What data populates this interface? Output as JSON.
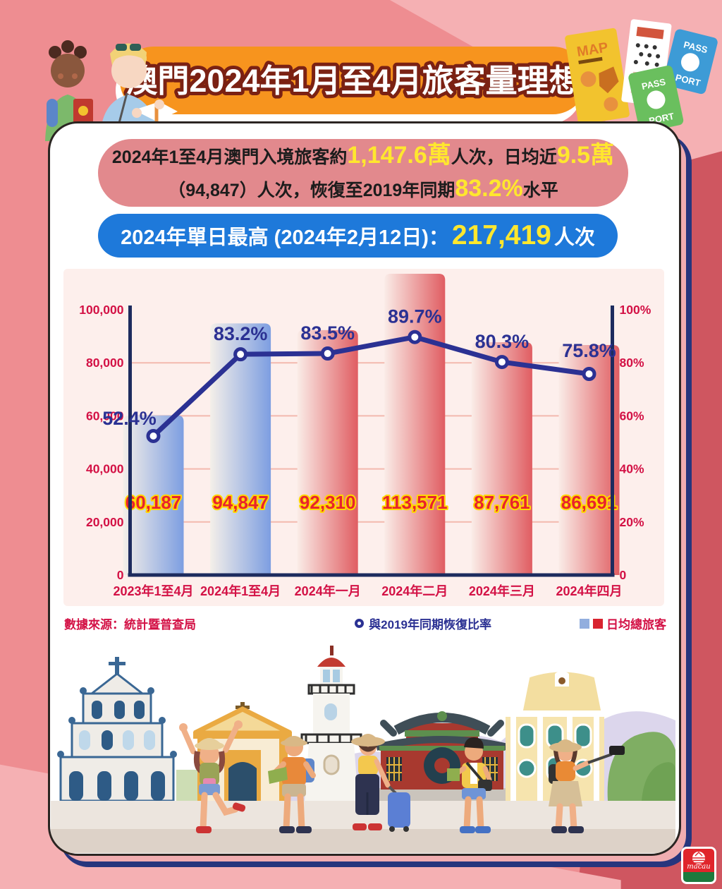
{
  "page": {
    "title": "澳門2024年1月至4月旅客量理想"
  },
  "summary": {
    "pre1": "2024年1至4月澳門入境旅客約",
    "big1": "1,147.6萬",
    "mid1": "人次，日均近",
    "big2": "9.5萬",
    "pre2": "（94,847）人次，恢復至2019年同期",
    "big3": "83.2%",
    "post2": "水平"
  },
  "peak": {
    "label": "2024年單日最高 (2024年2月12日)：",
    "value": "217,419",
    "unit": "人次"
  },
  "source": "數據來源：統計暨普查局",
  "legend": {
    "line_label": "與2019年同期恢復比率",
    "bars_label": "日均總旅客"
  },
  "logo": {
    "text": "macau"
  },
  "header_icons": {
    "map_booklet": "MAP",
    "passport_blue_top": "PASS",
    "passport_blue_bottom": "PORT",
    "passport_green_top": "PASS",
    "passport_green_bottom": "PORT"
  },
  "chart_data": {
    "type": "bar",
    "title": "",
    "categories": [
      "2023年1至4月",
      "2024年1至4月",
      "2024年一月",
      "2024年二月",
      "2024年三月",
      "2024年四月"
    ],
    "series": [
      {
        "name": "日均總旅客",
        "type": "bar",
        "values": [
          60187,
          94847,
          92310,
          113571,
          87761,
          86691
        ],
        "labels": [
          "60,187",
          "94,847",
          "92,310",
          "113,571",
          "87,761",
          "86,691"
        ],
        "bar_styles": [
          "blue",
          "blue",
          "red",
          "red",
          "red",
          "red"
        ]
      },
      {
        "name": "與2019年同期恢復比率",
        "type": "line",
        "values": [
          52.4,
          83.2,
          83.5,
          89.7,
          80.3,
          75.8
        ],
        "labels": [
          "52.4%",
          "83.2%",
          "83.5%",
          "89.7%",
          "80.3%",
          "75.8%"
        ]
      }
    ],
    "left_axis": {
      "label": "",
      "min": 0,
      "max": 100000,
      "ticks": [
        "100,000",
        "80,000",
        "60,000",
        "40,000",
        "20,000",
        "0"
      ]
    },
    "right_axis": {
      "label": "",
      "min": 0,
      "max": 100,
      "ticks": [
        "100%",
        "80%",
        "60%",
        "40%",
        "20%",
        "0"
      ]
    },
    "grid": true,
    "legend_position": "bottom-right",
    "colors": {
      "bar_blue_from": "#f4efe9",
      "bar_blue_to": "#7d9ee1",
      "bar_red_from": "#faece7",
      "bar_red_to": "#e05d62",
      "line": "#2b3193",
      "marker_fill": "#ffffff",
      "axis": "#1d2b5e",
      "grid": "#f3b9ae",
      "tick_label": "#d31145",
      "category_label": "#d31145",
      "bar_value_label": "#e8232d",
      "bar_value_outline": "#ffd800",
      "pct_label": "#2b3193"
    }
  }
}
